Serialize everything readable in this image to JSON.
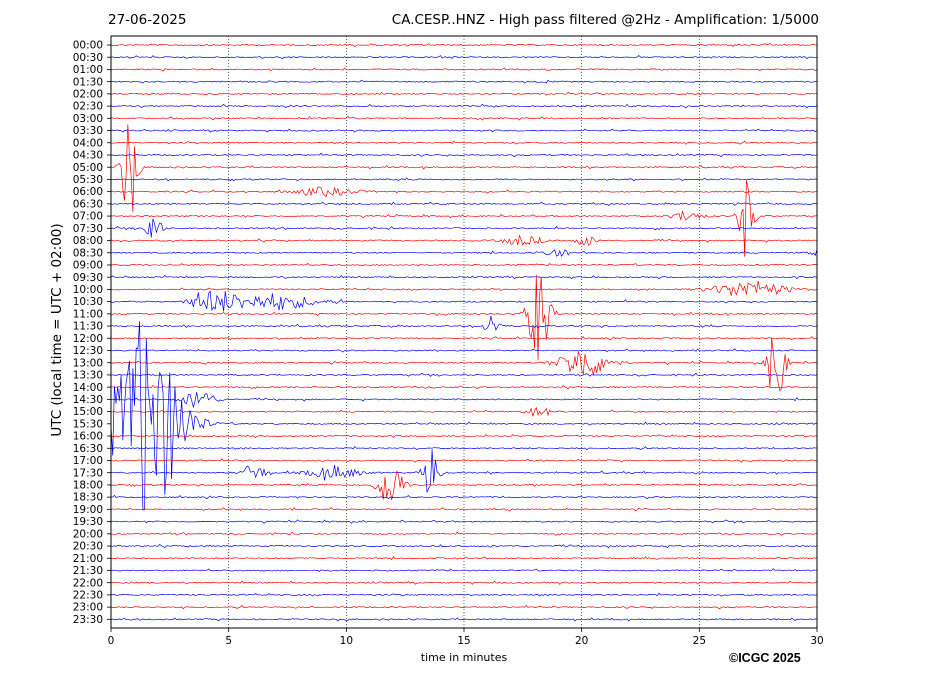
{
  "header": {
    "date": "27-06-2025",
    "title": "CA.CESP..HNZ - High pass filtered @2Hz - Amplification: 1/5000"
  },
  "footer": {
    "copyright": "©ICGC 2025"
  },
  "chart_data": {
    "type": "line",
    "title": "CA.CESP..HNZ - High pass filtered @2Hz - Amplification: 1/5000",
    "xlabel": "time in minutes",
    "ylabel": "UTC (local time = UTC + 02:00)",
    "xlim": [
      0,
      30
    ],
    "x_ticks": [
      0,
      5,
      10,
      15,
      20,
      25,
      30
    ],
    "y_tick_labels": [
      "00:00",
      "00:30",
      "01:00",
      "01:30",
      "02:00",
      "02:30",
      "03:00",
      "03:30",
      "04:00",
      "04:30",
      "05:00",
      "05:30",
      "06:00",
      "06:30",
      "07:00",
      "07:30",
      "08:00",
      "08:30",
      "09:00",
      "09:30",
      "10:00",
      "10:30",
      "11:00",
      "11:30",
      "12:00",
      "12:30",
      "13:00",
      "13:30",
      "14:00",
      "14:30",
      "15:00",
      "15:30",
      "16:00",
      "16:30",
      "17:00",
      "17:30",
      "18:00",
      "18:30",
      "19:00",
      "19:30",
      "20:00",
      "20:30",
      "21:00",
      "21:30",
      "22:00",
      "22:30",
      "23:00",
      "23:30"
    ],
    "trace_colors": [
      "#ff0000",
      "#0000ff"
    ],
    "vertical_grid": "dotted",
    "events": [
      {
        "row": "05:00",
        "minute": 0.8,
        "amplitude": 4.5,
        "duration": 0.3
      },
      {
        "row": "06:00",
        "minute": 9.2,
        "amplitude": 0.3,
        "duration": 1.2
      },
      {
        "row": "07:00",
        "minute": 27.0,
        "amplitude": 3.0,
        "duration": 0.3
      },
      {
        "row": "07:00",
        "minute": 24.5,
        "amplitude": 0.4,
        "duration": 0.6
      },
      {
        "row": "07:30",
        "minute": 1.8,
        "amplitude": 1.4,
        "duration": 0.3
      },
      {
        "row": "08:00",
        "minute": 17.5,
        "amplitude": 0.35,
        "duration": 0.8
      },
      {
        "row": "08:00",
        "minute": 20.2,
        "amplitude": 0.4,
        "duration": 0.4
      },
      {
        "row": "08:30",
        "minute": 19.0,
        "amplitude": 0.4,
        "duration": 0.4
      },
      {
        "row": "08:30",
        "minute": 30.0,
        "amplitude": 0.5,
        "duration": 0.3
      },
      {
        "row": "10:00",
        "minute": 27.2,
        "amplitude": 0.6,
        "duration": 1.5
      },
      {
        "row": "10:30",
        "minute": 4.0,
        "amplitude": 0.7,
        "duration": 0.6
      },
      {
        "row": "10:30",
        "minute": 5.0,
        "amplitude": 0.6,
        "duration": 0.8
      },
      {
        "row": "10:30",
        "minute": 7.2,
        "amplitude": 0.6,
        "duration": 1.5
      },
      {
        "row": "11:00",
        "minute": 18.2,
        "amplitude": 4.0,
        "duration": 0.4
      },
      {
        "row": "11:30",
        "minute": 16.2,
        "amplitude": 0.8,
        "duration": 0.3
      },
      {
        "row": "13:00",
        "minute": 28.3,
        "amplitude": 4.5,
        "duration": 0.3
      },
      {
        "row": "13:00",
        "minute": 20.2,
        "amplitude": 1.2,
        "duration": 1.0
      },
      {
        "row": "15:30",
        "minute": 1.6,
        "amplitude": 7.5,
        "duration": 1.4
      },
      {
        "row": "14:30",
        "minute": 3.8,
        "amplitude": 0.8,
        "duration": 0.6
      },
      {
        "row": "15:00",
        "minute": 18.2,
        "amplitude": 0.4,
        "duration": 0.5
      },
      {
        "row": "17:30",
        "minute": 6.1,
        "amplitude": 0.8,
        "duration": 0.4
      },
      {
        "row": "17:30",
        "minute": 13.6,
        "amplitude": 2.3,
        "duration": 0.3
      },
      {
        "row": "17:30",
        "minute": 9.5,
        "amplitude": 0.5,
        "duration": 1.0
      },
      {
        "row": "18:00",
        "minute": 11.9,
        "amplitude": 1.8,
        "duration": 0.5
      }
    ]
  }
}
